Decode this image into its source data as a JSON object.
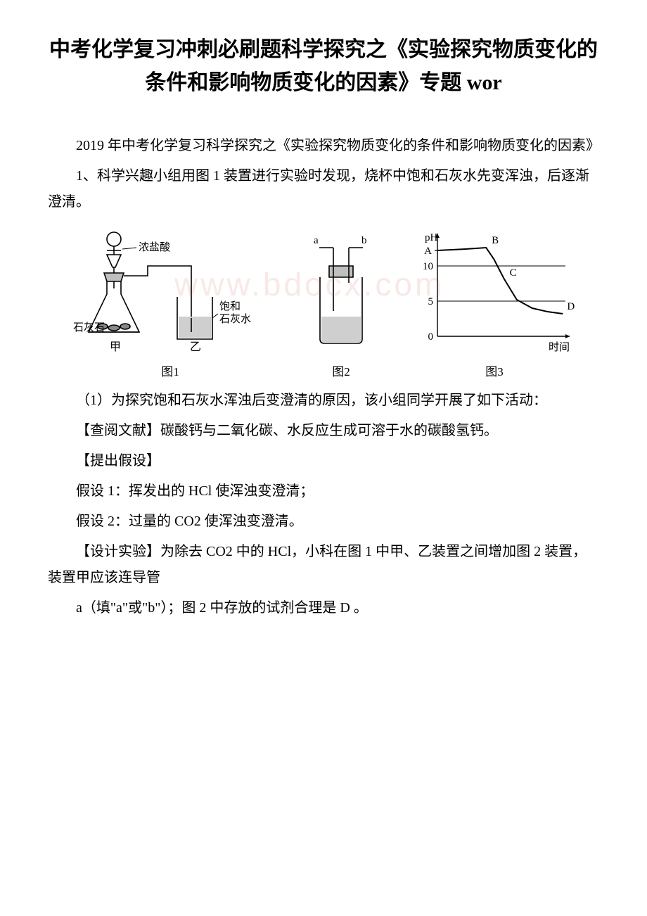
{
  "title": "中考化学复习冲刺必刷题科学探究之《实验探究物质变化的条件和影响物质变化的因素》专题 wor",
  "intro": "2019 年中考化学复习科学探究之《实验探究物质变化的条件和影响物质变化的因素》",
  "p_setup": "1、科学兴趣小组用图 1 装置进行实验时发现，烧杯中饱和石灰水先变浑浊，后逐渐澄清。",
  "p_task1": "（1）为探究饱和石灰水浑浊后变澄清的原因，该小组同学开展了如下活动：",
  "p_lit": "【查阅文献】碳酸钙与二氧化碳、水反应生成可溶于水的碳酸氢钙。",
  "p_hyp": "【提出假设】",
  "p_h1": "假设 1：挥发出的 HCl 使浑浊变澄清；",
  "p_h2": "假设 2：过量的 CO2 使浑浊变澄清。",
  "p_design": "【设计实验】为除去 CO2 中的 HCl，小科在图 1 中甲、乙装置之间增加图 2 装置，装置甲应该连导管",
  "p_ans": "a（填\"a\"或\"b\"）；图 2 中存放的试剂合理是 D 。",
  "fig1": {
    "hcl_label": "浓盐酸",
    "lime_label": "石灰石",
    "beaker_label": "饱和\n石灰水",
    "dev_a": "甲",
    "dev_b": "乙",
    "caption": "图1",
    "colors": {
      "stroke": "#000000",
      "fill_liquid": "#cfcfcf",
      "fill_solid": "#888888"
    }
  },
  "fig2": {
    "a": "a",
    "b": "b",
    "caption": "图2",
    "colors": {
      "stroke": "#000000",
      "fill_liquid": "#cfcfcf"
    }
  },
  "fig3": {
    "type": "line",
    "xlabel": "时间",
    "ylabel": "pH",
    "ylim": [
      0,
      14
    ],
    "yticks": [
      0,
      5,
      10
    ],
    "points": {
      "A": {
        "x": 0.0,
        "y": 12.2
      },
      "B": {
        "x": 0.38,
        "y": 12.6
      },
      "C": {
        "x": 0.52,
        "y": 8.2
      },
      "D": {
        "x": 0.98,
        "y": 3.2
      }
    },
    "curve": [
      [
        0.0,
        12.2
      ],
      [
        0.22,
        12.4
      ],
      [
        0.38,
        12.6
      ],
      [
        0.44,
        11.0
      ],
      [
        0.52,
        8.2
      ],
      [
        0.62,
        5.2
      ],
      [
        0.74,
        4.0
      ],
      [
        0.86,
        3.5
      ],
      [
        0.98,
        3.2
      ]
    ],
    "caption": "图3",
    "colors": {
      "axis": "#000000",
      "grid": "#000000",
      "line": "#000000",
      "text": "#000000",
      "bg": "#ffffff"
    },
    "line_width": 2,
    "axis_fontsize": 15
  },
  "watermark": "www.bdocx.com"
}
